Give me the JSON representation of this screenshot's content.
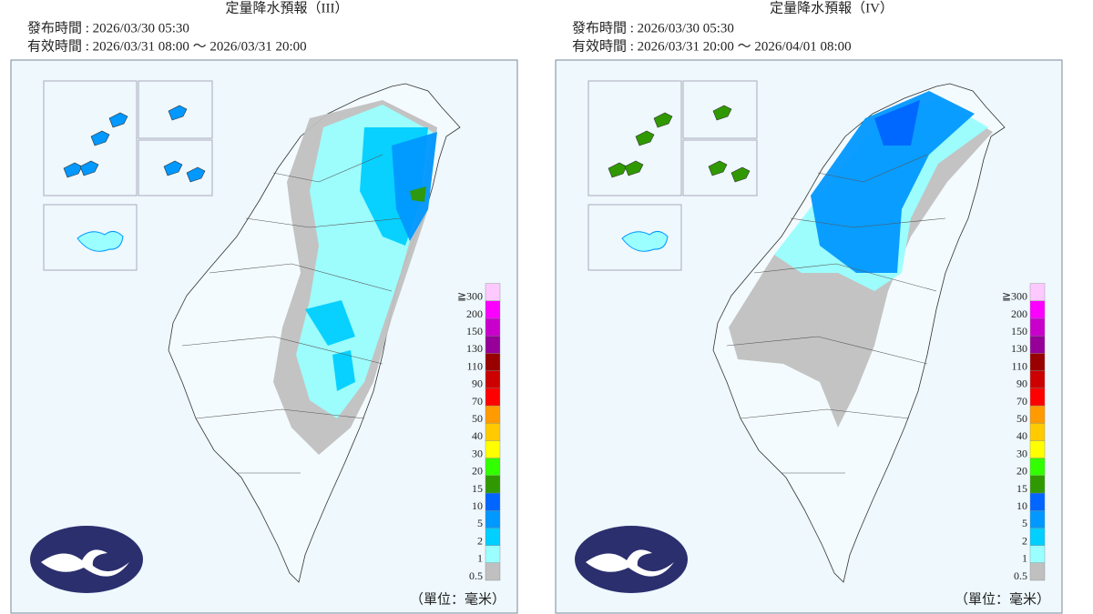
{
  "panels": [
    {
      "title": "定量降水預報（III）",
      "issued": "發布時間 : 2026/03/30 05:30",
      "valid": "有效時間 : 2026/03/31 08:00 ～ 2026/03/31 20:00",
      "unit": "（單位：毫米）"
    },
    {
      "title": "定量降水預報（IV）",
      "issued": "發布時間 : 2026/03/30 05:30",
      "valid": "有效時間 : 2026/03/31 20:00 ～ 2026/04/01 08:00",
      "unit": "（單位：毫米）"
    }
  ],
  "legend": {
    "labels": [
      "0.5",
      "1",
      "2",
      "5",
      "10",
      "15",
      "20",
      "30",
      "40",
      "50",
      "70",
      "90",
      "110",
      "130",
      "150",
      "200",
      "≧300"
    ],
    "colors": [
      "#c0c0c0",
      "#9bffff",
      "#00cfff",
      "#0198ff",
      "#0165ff",
      "#309901",
      "#32ff00",
      "#ffff00",
      "#ffcb00",
      "#ff9a00",
      "#ff0000",
      "#cc0000",
      "#990000",
      "#960099",
      "#c900cc",
      "#fb00ff",
      "#fdc9ff"
    ]
  }
}
